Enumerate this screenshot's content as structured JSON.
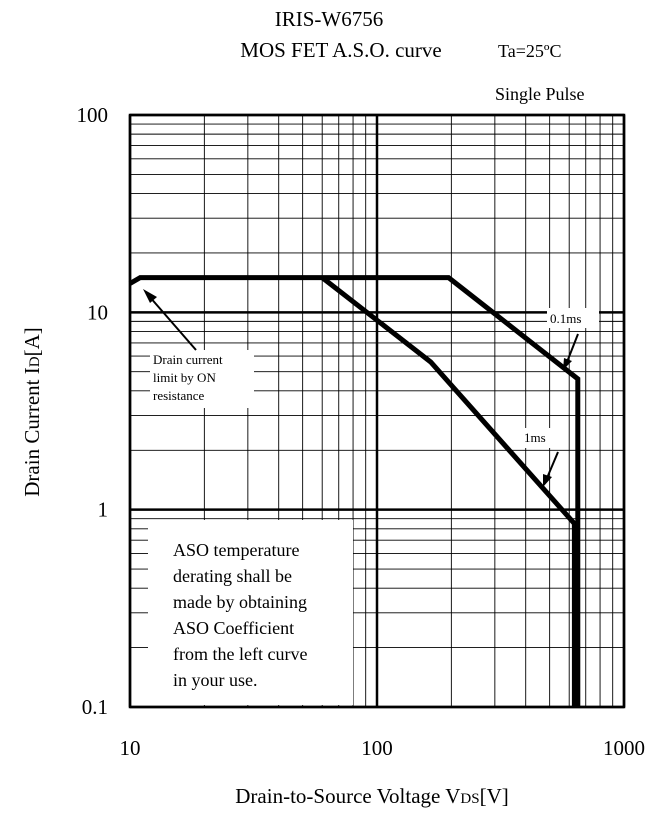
{
  "chart_data": {
    "type": "line",
    "title": "IRIS-W6756",
    "subtitle": "MOS FET A.S.O. curve",
    "condition": "Ta=25ºC",
    "pulse_note": "Single Pulse",
    "xlabel": {
      "main": "Drain-to-Source Voltage V",
      "sub": "DS",
      "unit": "[V]"
    },
    "ylabel": {
      "main": "Drain Current I",
      "sub": "D",
      "unit": "[A]"
    },
    "x_scale": "log",
    "y_scale": "log",
    "xlim": [
      10,
      1000
    ],
    "ylim": [
      0.1,
      100
    ],
    "x_ticks": [
      {
        "value": 10,
        "label": "10"
      },
      {
        "value": 100,
        "label": "100"
      },
      {
        "value": 1000,
        "label": "1000"
      }
    ],
    "y_ticks": [
      {
        "value": 0.1,
        "label": "0.1"
      },
      {
        "value": 1,
        "label": "1"
      },
      {
        "value": 10,
        "label": "10"
      },
      {
        "value": 100,
        "label": "100"
      }
    ],
    "grid": true,
    "series": [
      {
        "name": "0.1ms",
        "points": [
          [
            10,
            14
          ],
          [
            11,
            15
          ],
          [
            195,
            15
          ],
          [
            650,
            4.6
          ],
          [
            650,
            0.1
          ]
        ]
      },
      {
        "name": "1ms",
        "points": [
          [
            60,
            15
          ],
          [
            165,
            5.6
          ],
          [
            630,
            0.85
          ],
          [
            630,
            0.1
          ]
        ]
      }
    ],
    "annotations": {
      "drain_limit": [
        "Drain current",
        "limit by ON",
        "resistance"
      ],
      "label_01ms": "0.1ms",
      "label_1ms": "1ms",
      "aso_note": [
        "ASO temperature",
        "derating shall be",
        "made by obtaining",
        "ASO Coefficient",
        "from the left curve",
        "in your use."
      ]
    }
  }
}
